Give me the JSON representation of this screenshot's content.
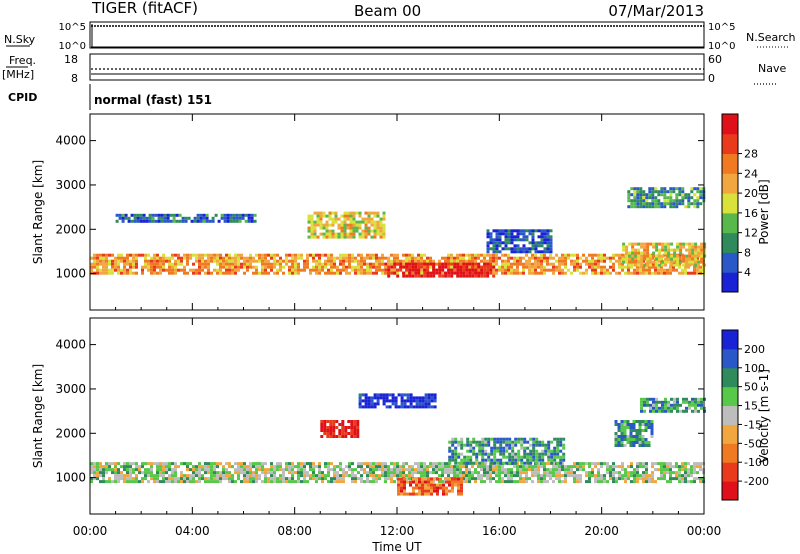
{
  "header": {
    "station": "TIGER (fitACF)",
    "beam": "Beam 00",
    "date": "07/Mar/2013"
  },
  "top_panels": {
    "nsky_label": "N.Sky",
    "nsky_ticks": [
      "10^5",
      "10^0"
    ],
    "nsky_right_ticks": [
      "10^5",
      "10^0"
    ],
    "nsearch_label": "N.Search",
    "freq_label": "Freq.",
    "freq_unit": "[MHz]",
    "freq_ticks": [
      "18",
      "8"
    ],
    "nave_label": "Nave",
    "nave_ticks": [
      "60",
      "0"
    ],
    "cpid_label": "CPID",
    "cpid_value": "normal (fast) 151"
  },
  "chart_data": [
    {
      "type": "heatmap",
      "panel": "power",
      "ylabel": "Slant Range [km]",
      "xlabel": "",
      "x_ticks": [
        "00:00",
        "04:00",
        "08:00",
        "12:00",
        "16:00",
        "20:00",
        "00:00"
      ],
      "x_range_hours": [
        0,
        24
      ],
      "y_ticks": [
        1000,
        2000,
        3000,
        4000
      ],
      "y_range_km": [
        180,
        4600
      ],
      "colorbar": {
        "label": "Power [dB]",
        "ticks": [
          "4",
          "8",
          "12",
          "16",
          "20",
          "24",
          "28"
        ],
        "colors": [
          "#1a22d6",
          "#2a58c8",
          "#2f8a5c",
          "#58b84c",
          "#d8e23a",
          "#f2a640",
          "#f07a22",
          "#ea3a1c",
          "#e0101a"
        ]
      },
      "regions": [
        {
          "t": [
            0.0,
            24.0
          ],
          "r": [
            1000,
            1450
          ],
          "level": 0.65
        },
        {
          "t": [
            1.0,
            6.5
          ],
          "r": [
            2150,
            2350
          ],
          "level": 0.2
        },
        {
          "t": [
            8.5,
            11.5
          ],
          "r": [
            1800,
            2400
          ],
          "level": 0.55
        },
        {
          "t": [
            11.5,
            15.8
          ],
          "r": [
            950,
            1250
          ],
          "level": 0.95
        },
        {
          "t": [
            15.5,
            18.0
          ],
          "r": [
            1500,
            2000
          ],
          "level": 0.15
        },
        {
          "t": [
            20.8,
            24.0
          ],
          "r": [
            1200,
            1700
          ],
          "level": 0.55
        },
        {
          "t": [
            21.0,
            24.0
          ],
          "r": [
            2500,
            2950
          ],
          "level": 0.3
        }
      ]
    },
    {
      "type": "heatmap",
      "panel": "velocity",
      "ylabel": "Slant Range [km]",
      "xlabel": "Time UT",
      "x_ticks": [
        "00:00",
        "04:00",
        "08:00",
        "12:00",
        "16:00",
        "20:00",
        "00:00"
      ],
      "x_range_hours": [
        0,
        24
      ],
      "y_ticks": [
        1000,
        2000,
        3000,
        4000
      ],
      "y_range_km": [
        180,
        4600
      ],
      "colorbar": {
        "label": "Velocity [m s-1]",
        "ticks": [
          "200",
          "100",
          "50",
          "15",
          "-15",
          "-50",
          "-100",
          "-200"
        ],
        "colors": [
          "#1a22d6",
          "#2a58c8",
          "#2f8a5c",
          "#58c84a",
          "#bdbdbd",
          "#f2a640",
          "#f07a22",
          "#ea3a1c",
          "#e0101a"
        ]
      },
      "regions": [
        {
          "t": [
            0.0,
            24.0
          ],
          "r": [
            900,
            1350
          ],
          "level": 0.45
        },
        {
          "t": [
            9.0,
            10.5
          ],
          "r": [
            1900,
            2300
          ],
          "level": 0.95
        },
        {
          "t": [
            10.5,
            13.5
          ],
          "r": [
            2600,
            2900
          ],
          "level": 0.05
        },
        {
          "t": [
            12.0,
            14.5
          ],
          "r": [
            600,
            1000
          ],
          "level": 0.75
        },
        {
          "t": [
            14.0,
            18.5
          ],
          "r": [
            1300,
            1900
          ],
          "level": 0.3
        },
        {
          "t": [
            20.5,
            22.0
          ],
          "r": [
            1700,
            2300
          ],
          "level": 0.3
        },
        {
          "t": [
            21.5,
            24.0
          ],
          "r": [
            2500,
            2800
          ],
          "level": 0.3
        }
      ]
    }
  ]
}
